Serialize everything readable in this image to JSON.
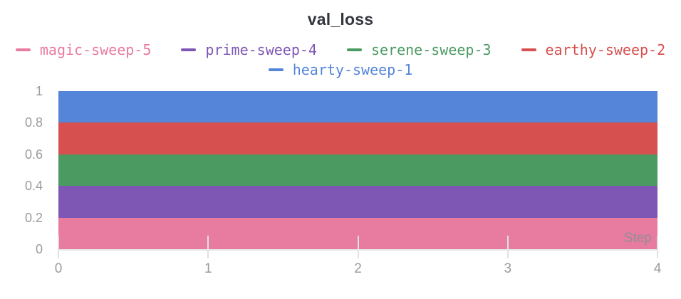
{
  "chart": {
    "title": "val_loss",
    "colors": {
      "title_text": "#33373d",
      "axis_line": "#e6e6e9",
      "tick_mark": "#e1e1e5",
      "axis_label": "#9b9ba0",
      "step_label": "#8f8f95"
    }
  },
  "legend": {
    "rows": [
      {
        "items": [
          {
            "label": "magic-sweep-5",
            "color": "#e87ba0"
          },
          {
            "label": "prime-sweep-4",
            "color": "#7e57b5"
          },
          {
            "label": "serene-sweep-3",
            "color": "#4a9a62"
          },
          {
            "label": "earthy-sweep-2",
            "color": "#d5504f"
          }
        ]
      },
      {
        "items": [
          {
            "label": "hearty-sweep-1",
            "color": "#5585d8"
          }
        ]
      }
    ]
  },
  "chart_data": {
    "type": "line",
    "title": "val_loss",
    "xlabel": "Step",
    "ylabel": "",
    "xlim": [
      0,
      4
    ],
    "ylim": [
      0,
      1
    ],
    "x": [
      0,
      1,
      2,
      3,
      4
    ],
    "xticks": [
      "0",
      "1",
      "2",
      "3",
      "4"
    ],
    "yticks": [
      "1",
      "0.8",
      "0.6",
      "0.4",
      "0.2",
      "0"
    ],
    "grid": false,
    "legend_position": "top",
    "series": [
      {
        "name": "hearty-sweep-1",
        "color": "#5585d8",
        "band": [
          0.8,
          1.0
        ],
        "values": [
          0.9,
          0.9,
          0.9,
          0.9,
          0.9
        ]
      },
      {
        "name": "earthy-sweep-2",
        "color": "#d5504f",
        "band": [
          0.6,
          0.8
        ],
        "values": [
          0.7,
          0.7,
          0.7,
          0.7,
          0.7
        ]
      },
      {
        "name": "serene-sweep-3",
        "color": "#4a9a62",
        "band": [
          0.4,
          0.6
        ],
        "values": [
          0.5,
          0.5,
          0.5,
          0.5,
          0.5
        ]
      },
      {
        "name": "prime-sweep-4",
        "color": "#7e57b5",
        "band": [
          0.2,
          0.4
        ],
        "values": [
          0.3,
          0.3,
          0.3,
          0.3,
          0.3
        ]
      },
      {
        "name": "magic-sweep-5",
        "color": "#e87ba0",
        "band": [
          0.0,
          0.2
        ],
        "values": [
          0.1,
          0.1,
          0.1,
          0.1,
          0.1
        ]
      }
    ]
  }
}
